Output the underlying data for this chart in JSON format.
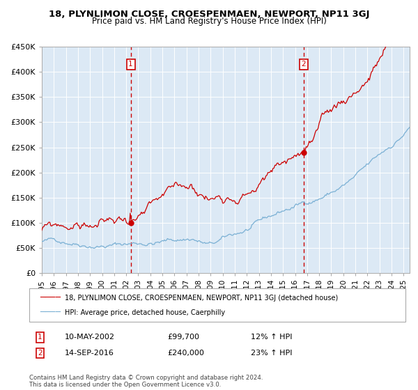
{
  "title": "18, PLYNLIMON CLOSE, CROESPENMAEN, NEWPORT, NP11 3GJ",
  "subtitle": "Price paid vs. HM Land Registry's House Price Index (HPI)",
  "bg_color": "#dce9f5",
  "hpi_color": "#7ab0d4",
  "price_color": "#cc0000",
  "purchase1_date": 2002.37,
  "purchase1_price": 99700,
  "purchase2_date": 2016.71,
  "purchase2_price": 240000,
  "ylim": [
    0,
    450000
  ],
  "xlim": [
    1995.0,
    2025.5
  ],
  "yticks": [
    0,
    50000,
    100000,
    150000,
    200000,
    250000,
    300000,
    350000,
    400000,
    450000
  ],
  "legend_label1": "18, PLYNLIMON CLOSE, CROESPENMAEN, NEWPORT, NP11 3GJ (detached house)",
  "legend_label2": "HPI: Average price, detached house, Caerphilly",
  "note1_date": "10-MAY-2002",
  "note1_price": "£99,700",
  "note1_hpi": "12% ↑ HPI",
  "note2_date": "14-SEP-2016",
  "note2_price": "£240,000",
  "note2_hpi": "23% ↑ HPI",
  "footer": "Contains HM Land Registry data © Crown copyright and database right 2024.\nThis data is licensed under the Open Government Licence v3.0."
}
